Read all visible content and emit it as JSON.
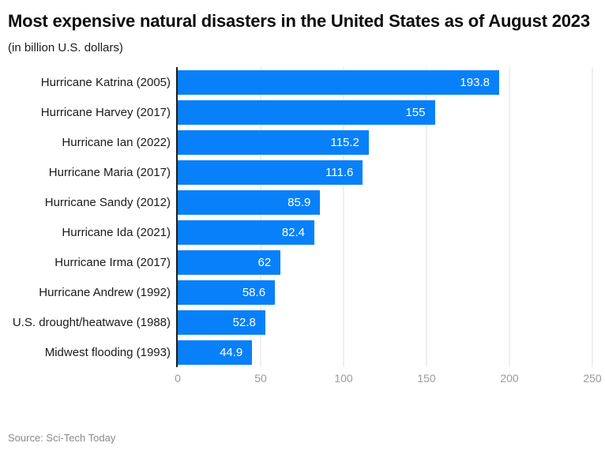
{
  "header": {
    "title": "Most expensive natural disasters in the United States as of August 2023",
    "subtitle": "(in billion U.S. dollars)"
  },
  "footer": {
    "source": "Source: Sci-Tech Today"
  },
  "colors": {
    "background": "#ffffff",
    "title": "#0d0d0d",
    "category_label": "#1a1a1a",
    "bar": "#0880fa",
    "value_label": "#ffffff",
    "axis_line": "#1c1c1c",
    "gridline": "#e2e2e2",
    "tick_label": "#9a9a9a",
    "source": "#8a8a8a"
  },
  "chart_data": {
    "type": "bar",
    "orientation": "horizontal",
    "title": "Most expensive natural disasters in the United States as of August 2023",
    "subtitle": "(in billion U.S. dollars)",
    "categories": [
      "Hurricane Katrina (2005)",
      "Hurricane Harvey (2017)",
      "Hurricane Ian (2022)",
      "Hurricane Maria (2017)",
      "Hurricane Sandy (2012)",
      "Hurricane Ida (2021)",
      "Hurricane Irma (2017)",
      "Hurricane Andrew (1992)",
      "U.S. drought/heatwave (1988)",
      "Midwest flooding (1993)"
    ],
    "values": [
      193.8,
      155,
      115.2,
      111.6,
      85.9,
      82.4,
      62,
      58.6,
      52.8,
      44.9
    ],
    "value_labels": [
      "193.8",
      "155",
      "115.2",
      "111.6",
      "85.9",
      "82.4",
      "62",
      "58.6",
      "52.8",
      "44.9"
    ],
    "xlabel": "",
    "ylabel": "",
    "xlim": [
      0,
      250
    ],
    "xticks": [
      0,
      50,
      100,
      150,
      200,
      250
    ],
    "xtick_labels": [
      "0",
      "50",
      "100",
      "150",
      "200",
      "250"
    ],
    "grid": true,
    "legend": false,
    "source": "Source: Sci-Tech Today"
  }
}
